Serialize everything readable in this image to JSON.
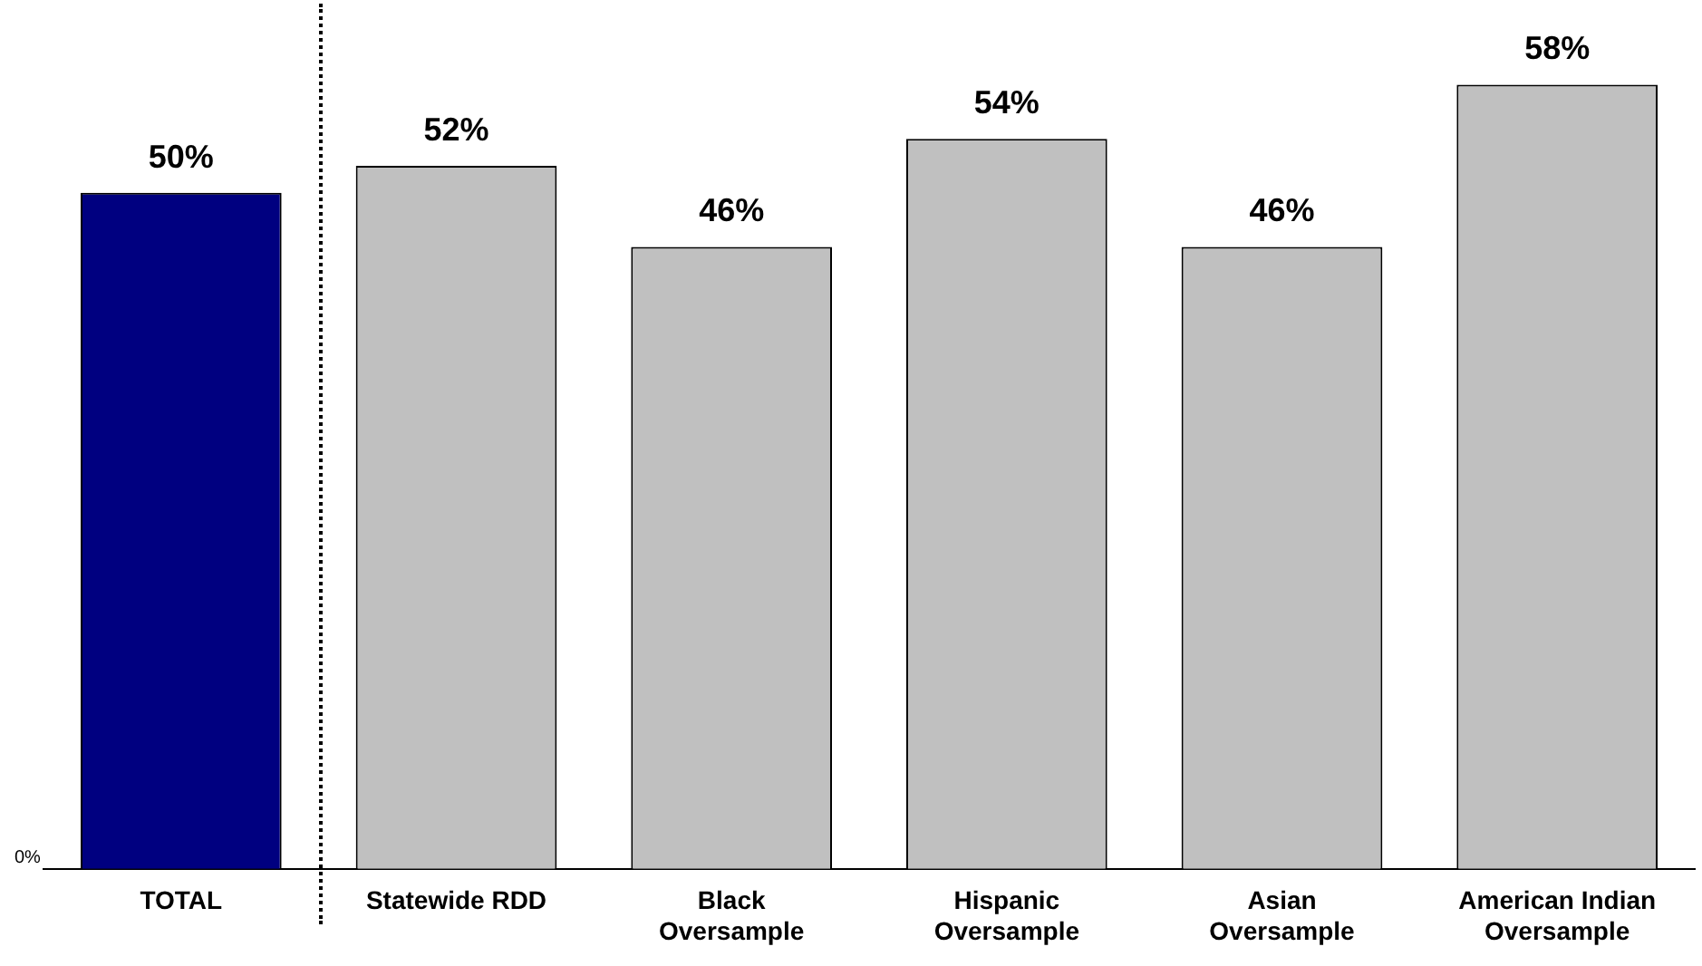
{
  "chart_data": {
    "type": "bar",
    "categories": [
      "TOTAL",
      "Statewide RDD",
      "Black Oversample",
      "Hispanic Oversample",
      "Asian Oversample",
      "American Indian Oversample"
    ],
    "values": [
      50,
      52,
      46,
      54,
      46,
      58
    ],
    "value_labels": [
      "50%",
      "52%",
      "46%",
      "54%",
      "46%",
      "58%"
    ],
    "colors": [
      "#000080",
      "#c0c0c0",
      "#c0c0c0",
      "#c0c0c0",
      "#c0c0c0",
      "#c0c0c0"
    ],
    "ylim": [
      0,
      64
    ],
    "annotations": [
      "0%"
    ],
    "legend": false
  }
}
